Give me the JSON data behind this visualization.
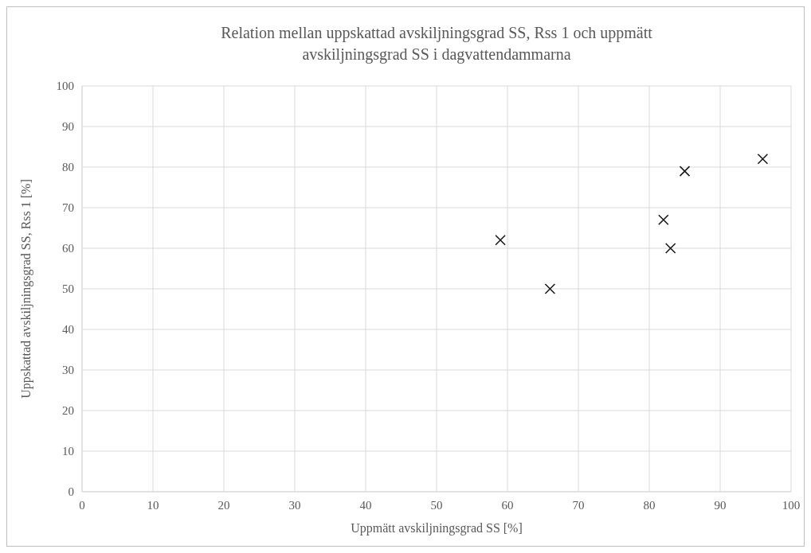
{
  "chart_data": {
    "type": "scatter",
    "title": "Relation mellan uppskattad avskiljningsgrad SS, Rss 1 och uppmätt avskiljningsgrad SS i dagvattendammarna",
    "xlabel": "Uppmätt avskiljningsgrad SS [%]",
    "ylabel": "Uppskattad avskiljningsgrad SS, Rss 1 [%]",
    "x": [
      59,
      66,
      82,
      83,
      85,
      96
    ],
    "series": [
      {
        "color": "#1a1a1a",
        "values": [
          62,
          50,
          67,
          60,
          79,
          82
        ]
      }
    ],
    "xlim": [
      0,
      100
    ],
    "xticks": [
      0,
      10,
      20,
      30,
      40,
      50,
      60,
      70,
      80,
      90,
      100
    ],
    "ylim": [
      0,
      100
    ],
    "yticks": [
      0,
      10,
      20,
      30,
      40,
      50,
      60,
      70,
      80,
      90,
      100
    ],
    "grid": true,
    "marker": "cross"
  }
}
